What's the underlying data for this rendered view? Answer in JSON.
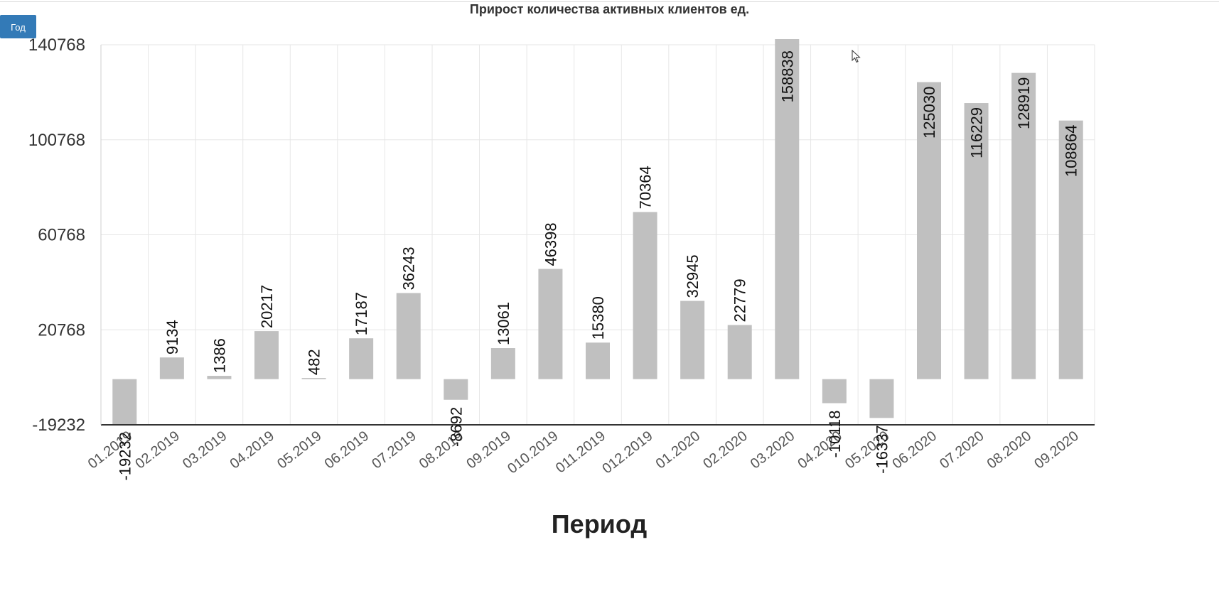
{
  "controls": {
    "period_button_label": "Год"
  },
  "colors": {
    "bar": "#c0c0c0",
    "grid": "#e6e6e6",
    "axis": "#333333",
    "button": "#337ab7"
  },
  "chart_data": {
    "type": "bar",
    "title": "Прирост количества активных клиентов ед.",
    "xlabel": "Период",
    "ylabel": "",
    "ylim": [
      -19232,
      140768
    ],
    "y_ticks": [
      -19232,
      20768,
      60768,
      100768,
      140768
    ],
    "grid": true,
    "legend": "none",
    "categories": [
      "01.2019",
      "02.2019",
      "03.2019",
      "04.2019",
      "05.2019",
      "06.2019",
      "07.2019",
      "08.2019",
      "09.2019",
      "010.2019",
      "011.2019",
      "012.2019",
      "01.2020",
      "02.2020",
      "03.2020",
      "04.2020",
      "05.2020",
      "06.2020",
      "07.2020",
      "08.2020",
      "09.2020"
    ],
    "values": [
      -19232,
      9134,
      1386,
      20217,
      482,
      17187,
      36243,
      -8692,
      13061,
      46398,
      15380,
      70364,
      32945,
      22779,
      158838,
      -10118,
      -16337,
      125030,
      116229,
      128919,
      108864
    ]
  }
}
